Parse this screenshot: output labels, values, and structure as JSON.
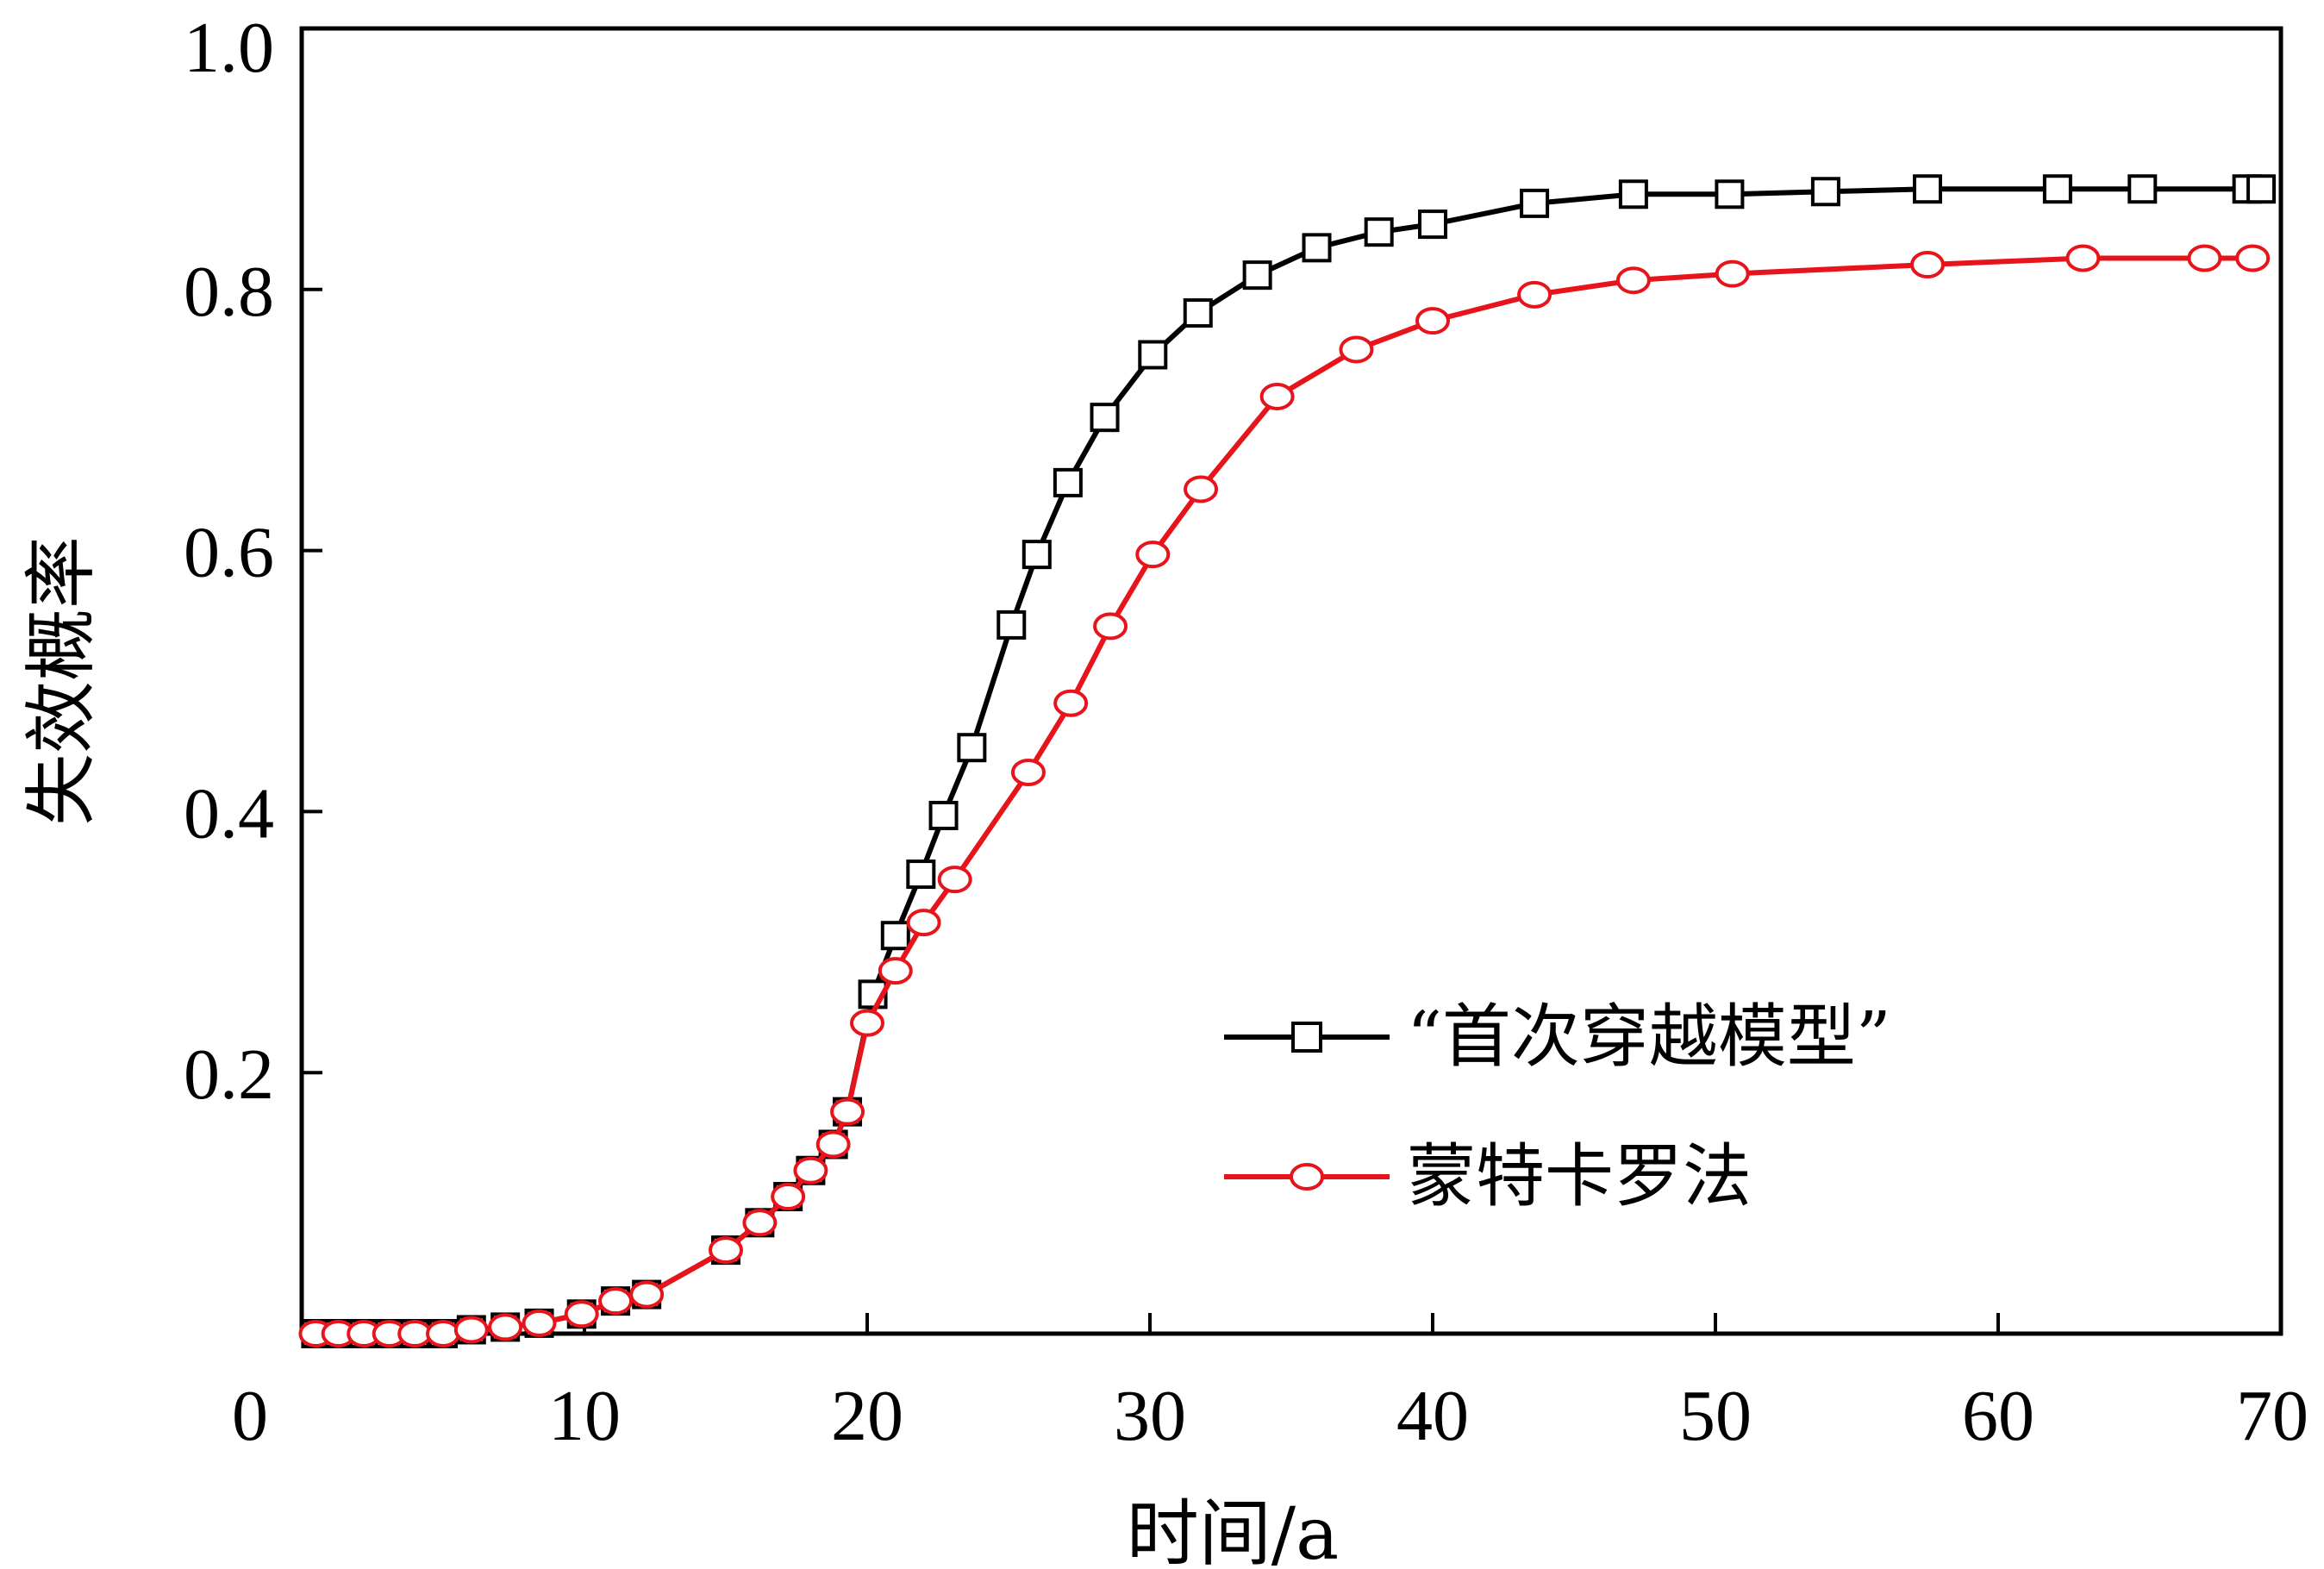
{
  "chart_data": {
    "type": "line",
    "xlabel": "时间/a",
    "ylabel": "失效概率",
    "xlim": [
      0,
      70
    ],
    "ylim": [
      0,
      1.0
    ],
    "x_ticks": [
      "0",
      "10",
      "20",
      "30",
      "40",
      "50",
      "60",
      "70"
    ],
    "y_ticks": [
      "0.2",
      "0.4",
      "0.6",
      "0.8",
      "1.0"
    ],
    "grid": false,
    "legend_position": "bottom-right",
    "series": [
      {
        "name": "“首次穿越模型”",
        "color": "#000000",
        "marker": "square",
        "x": [
          0.5,
          1.3,
          2.2,
          3.1,
          4.0,
          5.0,
          6.0,
          7.2,
          8.4,
          9.9,
          11.1,
          12.2,
          15.0,
          16.2,
          17.2,
          18.0,
          18.8,
          19.3,
          20.2,
          21.0,
          21.9,
          22.7,
          23.7,
          25.1,
          26.0,
          27.1,
          28.4,
          30.1,
          31.7,
          33.8,
          35.9,
          38.1,
          40.0,
          43.6,
          47.1,
          50.5,
          53.9,
          57.5,
          62.1,
          65.1,
          68.8,
          69.3
        ],
        "y": [
          0.0,
          0.0,
          0.0,
          0.0,
          0.0,
          0.0,
          0.003,
          0.005,
          0.008,
          0.015,
          0.025,
          0.03,
          0.064,
          0.085,
          0.105,
          0.125,
          0.145,
          0.17,
          0.26,
          0.305,
          0.352,
          0.397,
          0.449,
          0.543,
          0.597,
          0.652,
          0.702,
          0.75,
          0.782,
          0.811,
          0.832,
          0.844,
          0.85,
          0.866,
          0.873,
          0.873,
          0.875,
          0.877,
          0.877,
          0.877,
          0.877,
          0.877
        ]
      },
      {
        "name": "蒙特卡罗法",
        "color": "#e8141b",
        "marker": "circle",
        "x": [
          0.5,
          1.3,
          2.2,
          3.1,
          4.0,
          5.0,
          6.0,
          7.2,
          8.4,
          9.9,
          11.1,
          12.2,
          15.0,
          16.2,
          17.2,
          18.0,
          18.8,
          19.3,
          20.0,
          21.0,
          22.0,
          23.1,
          25.7,
          27.2,
          28.6,
          30.1,
          31.8,
          34.5,
          37.3,
          40.0,
          43.6,
          47.1,
          50.6,
          57.5,
          63.0,
          67.3,
          69.0
        ],
        "y": [
          0.0,
          0.0,
          0.0,
          0.0,
          0.0,
          0.0,
          0.003,
          0.005,
          0.008,
          0.015,
          0.025,
          0.03,
          0.064,
          0.085,
          0.105,
          0.125,
          0.145,
          0.17,
          0.238,
          0.278,
          0.315,
          0.348,
          0.43,
          0.483,
          0.542,
          0.597,
          0.647,
          0.718,
          0.754,
          0.776,
          0.796,
          0.807,
          0.812,
          0.819,
          0.824,
          0.824,
          0.824
        ]
      }
    ]
  }
}
